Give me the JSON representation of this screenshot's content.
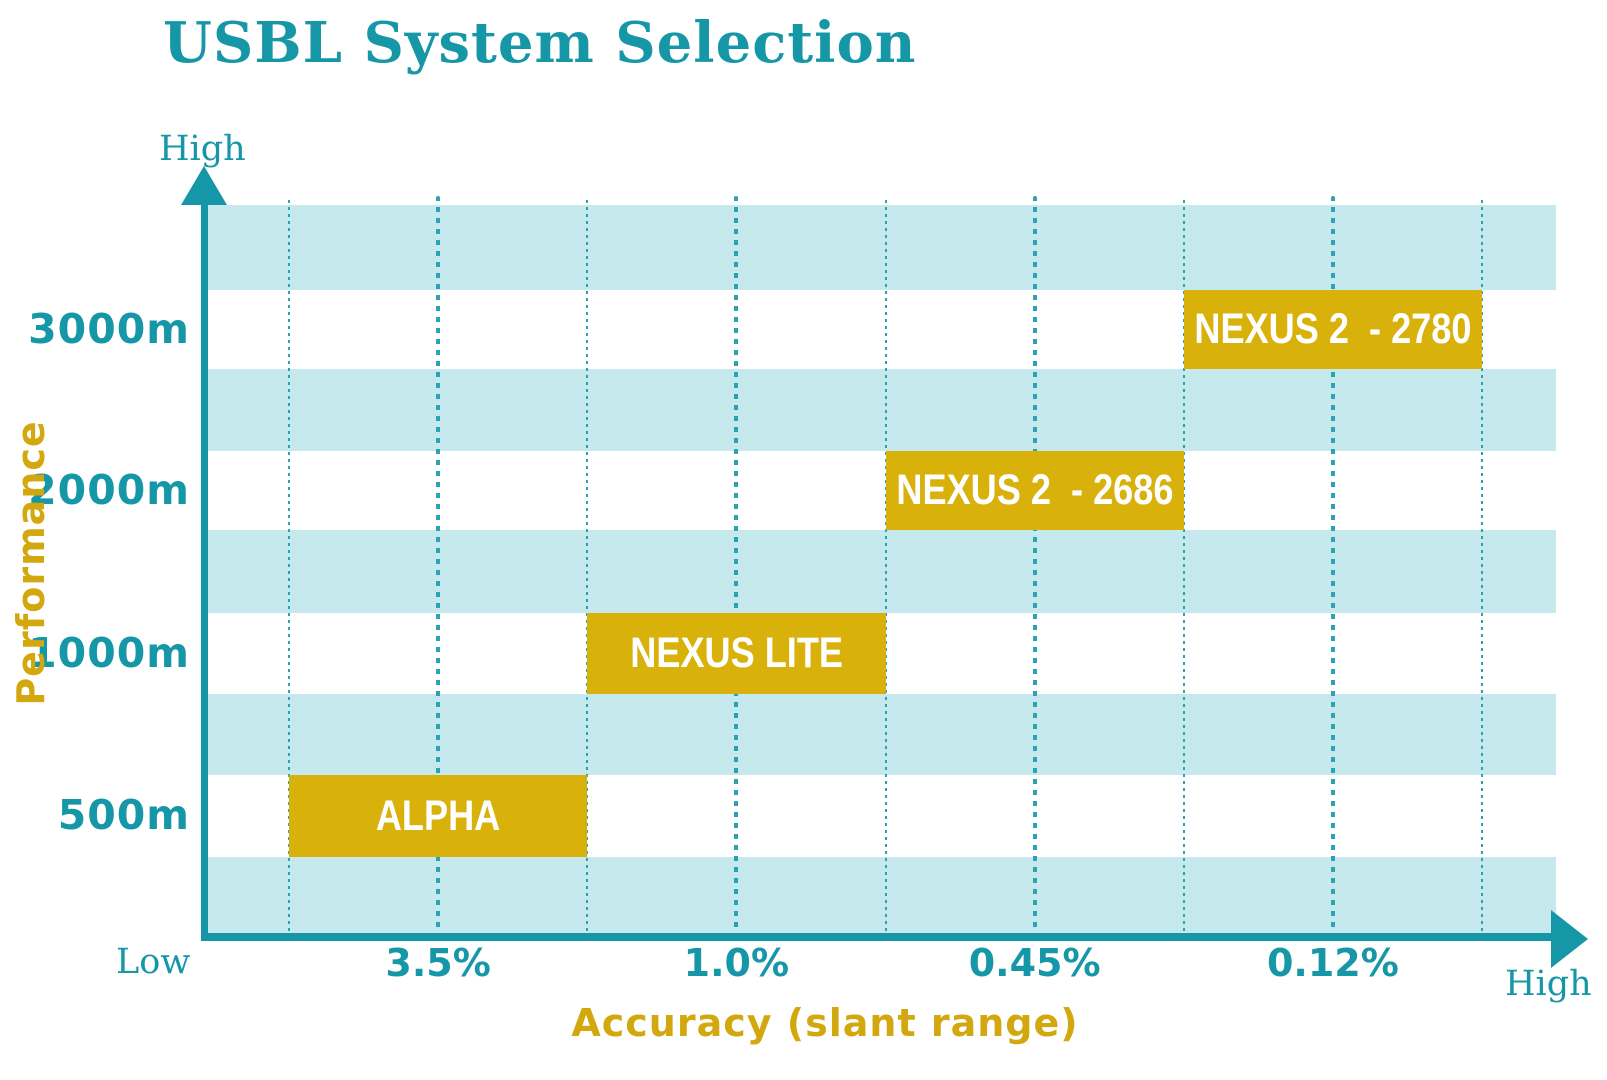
{
  "colors": {
    "teal": "#1697A8",
    "grid_dot_teal": "#2AA3B2",
    "light_band": "#C6E9ED",
    "gold": "#D9B10B",
    "gold_text": "#D3A70E",
    "box_text": "#FFFFFF",
    "background": "#FFFFFF"
  },
  "chart_data": {
    "type": "scatter",
    "title": "USBL System Selection",
    "xlabel": "Accuracy (slant range)",
    "ylabel": "Performance",
    "axis_extremes": {
      "y_top": "High",
      "origin": "Low",
      "x_right": "High"
    },
    "x_ticks": [
      {
        "label": "3.5%",
        "col": 1
      },
      {
        "label": "1.0%",
        "col": 3
      },
      {
        "label": "0.45%",
        "col": 5
      },
      {
        "label": "0.12%",
        "col": 7
      }
    ],
    "y_ticks": [
      {
        "label": "3000m",
        "row": 1
      },
      {
        "label": "2000m",
        "row": 3
      },
      {
        "label": "1000m",
        "row": 5
      },
      {
        "label": "500m",
        "row": 7
      }
    ],
    "grid": {
      "vertical_dotted_columns": 9,
      "thick_dotted_columns": [
        1,
        3,
        5,
        7
      ],
      "horizontal_stripe_rows": 9,
      "legend": "none"
    },
    "products": [
      {
        "label": "ALPHA",
        "performance": "500m",
        "accuracy": "3.5%",
        "col_start": 0,
        "col_end": 2,
        "row": 7
      },
      {
        "label": "NEXUS LITE",
        "performance": "1000m",
        "accuracy": "1.0%",
        "col_start": 2,
        "col_end": 4,
        "row": 5
      },
      {
        "label": "NEXUS 2  - 2686",
        "performance": "2000m",
        "accuracy": "0.45%",
        "col_start": 4,
        "col_end": 6,
        "row": 3
      },
      {
        "label": "NEXUS 2  - 2780",
        "performance": "3000m",
        "accuracy": "0.12%",
        "col_start": 6,
        "col_end": 8,
        "row": 1
      }
    ]
  }
}
